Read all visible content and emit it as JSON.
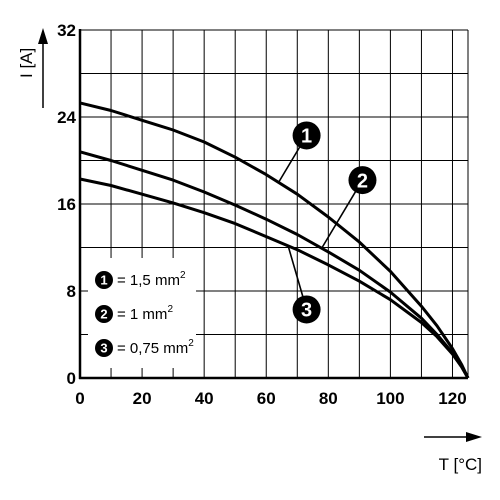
{
  "chart_data": {
    "type": "line",
    "xlabel": "T [°C]",
    "ylabel": "I [A]",
    "xlim": [
      0,
      125
    ],
    "ylim": [
      0,
      32
    ],
    "x_ticks": [
      "0",
      "20",
      "40",
      "60",
      "80",
      "100",
      "120"
    ],
    "y_ticks": [
      "0",
      "8",
      "16",
      "24",
      "32"
    ],
    "grid": true,
    "legend_position": "bottom-left",
    "series": [
      {
        "name": "1,5 mm2",
        "label": "1",
        "x": [
          0,
          10,
          20,
          30,
          40,
          50,
          60,
          70,
          80,
          90,
          100,
          110,
          115,
          120,
          123,
          125
        ],
        "y": [
          25.3,
          24.6,
          23.7,
          22.8,
          21.7,
          20.3,
          18.7,
          16.9,
          14.8,
          12.5,
          9.8,
          6.6,
          4.8,
          2.7,
          1.2,
          0
        ]
      },
      {
        "name": "1 mm2",
        "label": "2",
        "x": [
          0,
          10,
          20,
          30,
          40,
          50,
          60,
          70,
          80,
          90,
          100,
          110,
          115,
          120,
          123,
          125
        ],
        "y": [
          20.8,
          20.0,
          19.1,
          18.2,
          17.1,
          15.9,
          14.6,
          13.2,
          11.6,
          9.9,
          7.9,
          5.5,
          4.0,
          2.3,
          1.0,
          0
        ]
      },
      {
        "name": "0,75 mm2",
        "label": "3",
        "x": [
          0,
          10,
          20,
          30,
          40,
          50,
          60,
          70,
          80,
          90,
          100,
          110,
          115,
          120,
          123,
          125
        ],
        "y": [
          18.3,
          17.7,
          16.9,
          16.1,
          15.2,
          14.2,
          13.0,
          11.8,
          10.4,
          8.9,
          7.2,
          5.1,
          3.8,
          2.2,
          1.0,
          0
        ]
      }
    ],
    "callouts": [
      {
        "label": "1",
        "at_x": 64,
        "at_y": 18.0,
        "badge_x": 73,
        "badge_y": 22.3
      },
      {
        "label": "2",
        "at_x": 78,
        "at_y": 12.0,
        "badge_x": 91,
        "badge_y": 18.2
      },
      {
        "label": "3",
        "at_x": 67,
        "at_y": 12.2,
        "badge_x": 73,
        "badge_y": 6.3
      }
    ],
    "legend": [
      {
        "label": "1",
        "text": "= 1,5 mm",
        "sup": "2"
      },
      {
        "label": "2",
        "text": "= 1 mm",
        "sup": "2"
      },
      {
        "label": "3",
        "text": "= 0,75 mm",
        "sup": "2"
      }
    ]
  }
}
